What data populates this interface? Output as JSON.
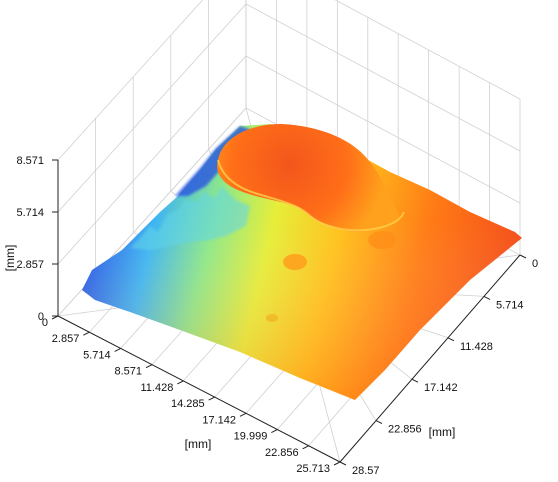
{
  "chart_data": {
    "type": "surface3d",
    "title": "",
    "xlabel": "[mm]",
    "ylabel": "[mm]",
    "zlabel": "[mm]",
    "x_ticks": [
      "0",
      "2.857",
      "5.714",
      "8.571",
      "11.428",
      "14.285",
      "17.142",
      "19.999",
      "22.856",
      "25.713"
    ],
    "y_ticks": [
      "0",
      "5.714",
      "11.428",
      "17.142",
      "22.856",
      "28.57"
    ],
    "z_ticks": [
      "0",
      "2.857",
      "5.714",
      "8.571"
    ],
    "xlim": [
      0,
      25.713
    ],
    "ylim": [
      0,
      28.57
    ],
    "zlim": [
      0,
      8.571
    ],
    "colormap": "jet",
    "grid": true,
    "surface_description_height_mm": {
      "low_edge_left_side": 1.2,
      "plateau_right_side": 3.5,
      "raised_cap_top_back": 5.5
    }
  }
}
